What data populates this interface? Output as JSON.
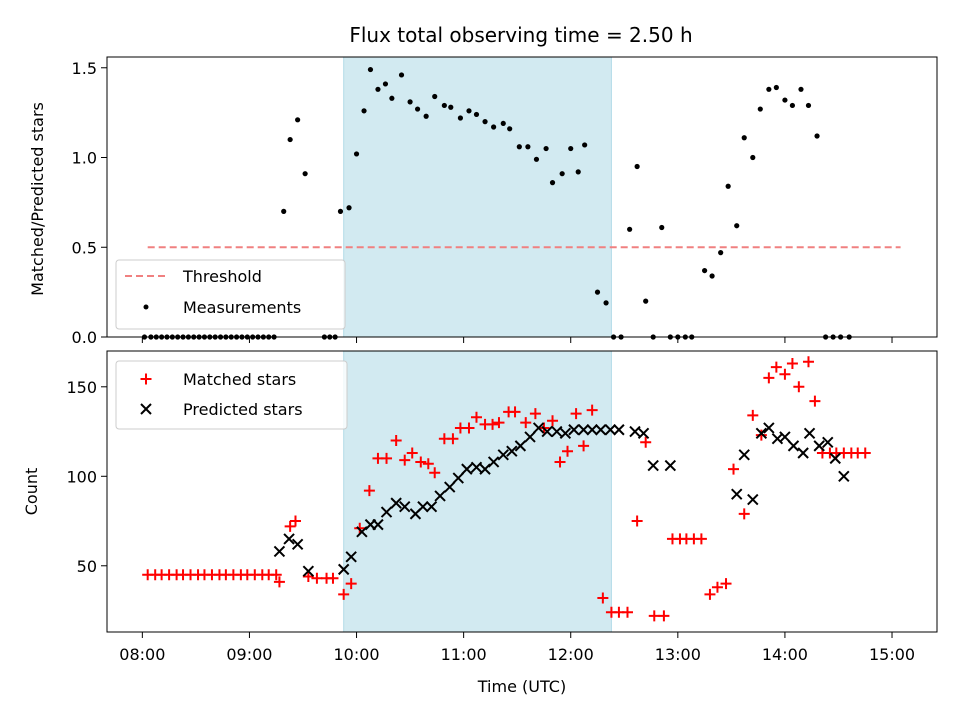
{
  "title": "Flux total observing time = 2.50 h",
  "colors": {
    "shade": "#add8e6",
    "threshold": "#f08080",
    "measurement": "#000000",
    "matched": "#ff0000",
    "predicted": "#000000"
  },
  "chart_data": [
    {
      "type": "scatter",
      "ylabel": "Matched/Predicted stars",
      "xlim": [
        7.67,
        15.42
      ],
      "ylim": [
        0,
        1.56
      ],
      "yticks": [
        0.0,
        0.5,
        1.0,
        1.5
      ],
      "shaded_interval": [
        9.88,
        12.38
      ],
      "threshold": {
        "name": "Threshold",
        "value": 0.5,
        "x": [
          8.05,
          15.08
        ]
      },
      "legend": [
        "Threshold",
        "Measurements"
      ],
      "legend_position": "lower left",
      "series": [
        {
          "name": "Measurements",
          "points": [
            [
              8.02,
              0
            ],
            [
              8.08,
              0
            ],
            [
              8.13,
              0
            ],
            [
              8.18,
              0
            ],
            [
              8.23,
              0
            ],
            [
              8.28,
              0
            ],
            [
              8.33,
              0
            ],
            [
              8.38,
              0
            ],
            [
              8.43,
              0
            ],
            [
              8.48,
              0
            ],
            [
              8.53,
              0
            ],
            [
              8.58,
              0
            ],
            [
              8.63,
              0
            ],
            [
              8.68,
              0
            ],
            [
              8.73,
              0
            ],
            [
              8.78,
              0
            ],
            [
              8.83,
              0
            ],
            [
              8.88,
              0
            ],
            [
              8.93,
              0
            ],
            [
              8.98,
              0
            ],
            [
              9.03,
              0
            ],
            [
              9.08,
              0
            ],
            [
              9.13,
              0
            ],
            [
              9.18,
              0
            ],
            [
              9.23,
              0
            ],
            [
              9.32,
              0.7
            ],
            [
              9.38,
              1.1
            ],
            [
              9.45,
              1.21
            ],
            [
              9.52,
              0.91
            ],
            [
              9.7,
              0
            ],
            [
              9.75,
              0
            ],
            [
              9.8,
              0
            ],
            [
              9.85,
              0.7
            ],
            [
              9.93,
              0.72
            ],
            [
              10.0,
              1.02
            ],
            [
              10.07,
              1.26
            ],
            [
              10.13,
              1.49
            ],
            [
              10.2,
              1.38
            ],
            [
              10.27,
              1.41
            ],
            [
              10.33,
              1.33
            ],
            [
              10.42,
              1.46
            ],
            [
              10.5,
              1.31
            ],
            [
              10.57,
              1.27
            ],
            [
              10.65,
              1.23
            ],
            [
              10.73,
              1.34
            ],
            [
              10.82,
              1.29
            ],
            [
              10.88,
              1.28
            ],
            [
              10.97,
              1.22
            ],
            [
              11.05,
              1.26
            ],
            [
              11.12,
              1.24
            ],
            [
              11.2,
              1.2
            ],
            [
              11.28,
              1.17
            ],
            [
              11.37,
              1.19
            ],
            [
              11.43,
              1.16
            ],
            [
              11.52,
              1.06
            ],
            [
              11.6,
              1.06
            ],
            [
              11.68,
              0.99
            ],
            [
              11.77,
              1.05
            ],
            [
              11.83,
              0.86
            ],
            [
              11.92,
              0.91
            ],
            [
              12.0,
              1.05
            ],
            [
              12.07,
              0.92
            ],
            [
              12.13,
              1.07
            ],
            [
              12.25,
              0.25
            ],
            [
              12.33,
              0.19
            ],
            [
              12.4,
              0
            ],
            [
              12.47,
              0
            ],
            [
              12.55,
              0.6
            ],
            [
              12.62,
              0.95
            ],
            [
              12.7,
              0.2
            ],
            [
              12.77,
              0
            ],
            [
              12.85,
              0.61
            ],
            [
              12.93,
              0
            ],
            [
              13.0,
              0
            ],
            [
              13.07,
              0
            ],
            [
              13.13,
              0
            ],
            [
              13.25,
              0.37
            ],
            [
              13.32,
              0.34
            ],
            [
              13.4,
              0.47
            ],
            [
              13.47,
              0.84
            ],
            [
              13.55,
              0.62
            ],
            [
              13.62,
              1.11
            ],
            [
              13.7,
              1.0
            ],
            [
              13.77,
              1.27
            ],
            [
              13.85,
              1.38
            ],
            [
              13.92,
              1.39
            ],
            [
              14.0,
              1.32
            ],
            [
              14.07,
              1.29
            ],
            [
              14.15,
              1.38
            ],
            [
              14.22,
              1.29
            ],
            [
              14.3,
              1.12
            ],
            [
              14.38,
              0
            ],
            [
              14.45,
              0
            ],
            [
              14.52,
              0
            ],
            [
              14.6,
              0
            ]
          ]
        }
      ]
    },
    {
      "type": "scatter",
      "xlabel": "Time (UTC)",
      "ylabel": "Count",
      "xlim": [
        7.67,
        15.42
      ],
      "ylim": [
        13,
        170
      ],
      "yticks": [
        50,
        100,
        150
      ],
      "xticks": [
        "08:00",
        "09:00",
        "10:00",
        "11:00",
        "12:00",
        "13:00",
        "14:00",
        "15:00"
      ],
      "shaded_interval": [
        9.88,
        12.38
      ],
      "legend": [
        "Matched stars",
        "Predicted stars"
      ],
      "legend_position": "upper left",
      "series": [
        {
          "name": "Matched stars",
          "marker": "+",
          "points": [
            [
              8.05,
              45
            ],
            [
              8.12,
              45
            ],
            [
              8.18,
              45
            ],
            [
              8.25,
              45
            ],
            [
              8.32,
              45
            ],
            [
              8.38,
              45
            ],
            [
              8.45,
              45
            ],
            [
              8.52,
              45
            ],
            [
              8.58,
              45
            ],
            [
              8.65,
              45
            ],
            [
              8.72,
              45
            ],
            [
              8.78,
              45
            ],
            [
              8.85,
              45
            ],
            [
              8.92,
              45
            ],
            [
              8.98,
              45
            ],
            [
              9.05,
              45
            ],
            [
              9.12,
              45
            ],
            [
              9.18,
              45
            ],
            [
              9.25,
              45
            ],
            [
              9.28,
              41
            ],
            [
              9.38,
              72
            ],
            [
              9.43,
              75
            ],
            [
              9.55,
              44
            ],
            [
              9.63,
              43
            ],
            [
              9.72,
              43
            ],
            [
              9.78,
              43
            ],
            [
              9.88,
              34
            ],
            [
              9.95,
              40
            ],
            [
              10.03,
              71
            ],
            [
              10.12,
              92
            ],
            [
              10.2,
              110
            ],
            [
              10.28,
              110
            ],
            [
              10.37,
              120
            ],
            [
              10.45,
              109
            ],
            [
              10.52,
              113
            ],
            [
              10.6,
              108
            ],
            [
              10.67,
              107
            ],
            [
              10.73,
              102
            ],
            [
              10.82,
              121
            ],
            [
              10.9,
              121
            ],
            [
              10.97,
              127
            ],
            [
              11.05,
              127
            ],
            [
              11.12,
              133
            ],
            [
              11.2,
              129
            ],
            [
              11.27,
              129
            ],
            [
              11.33,
              130
            ],
            [
              11.42,
              136
            ],
            [
              11.48,
              136
            ],
            [
              11.58,
              130
            ],
            [
              11.67,
              135
            ],
            [
              11.75,
              127
            ],
            [
              11.83,
              131
            ],
            [
              11.9,
              108
            ],
            [
              11.97,
              114
            ],
            [
              12.05,
              135
            ],
            [
              12.12,
              117
            ],
            [
              12.2,
              137
            ],
            [
              12.3,
              32
            ],
            [
              12.38,
              24
            ],
            [
              12.45,
              24
            ],
            [
              12.53,
              24
            ],
            [
              12.62,
              75
            ],
            [
              12.7,
              119
            ],
            [
              12.78,
              22
            ],
            [
              12.87,
              22
            ],
            [
              12.95,
              65
            ],
            [
              13.02,
              65
            ],
            [
              13.08,
              65
            ],
            [
              13.15,
              65
            ],
            [
              13.22,
              65
            ],
            [
              13.3,
              34
            ],
            [
              13.37,
              38
            ],
            [
              13.45,
              40
            ],
            [
              13.52,
              104
            ],
            [
              13.62,
              79
            ],
            [
              13.7,
              134
            ],
            [
              13.78,
              123
            ],
            [
              13.85,
              155
            ],
            [
              13.92,
              161
            ],
            [
              14.0,
              157
            ],
            [
              14.07,
              163
            ],
            [
              14.13,
              150
            ],
            [
              14.22,
              164
            ],
            [
              14.28,
              142
            ],
            [
              14.35,
              113
            ],
            [
              14.42,
              113
            ],
            [
              14.48,
              113
            ],
            [
              14.55,
              113
            ],
            [
              14.62,
              113
            ],
            [
              14.68,
              113
            ],
            [
              14.75,
              113
            ]
          ]
        },
        {
          "name": "Predicted stars",
          "marker": "x",
          "points": [
            [
              9.28,
              58
            ],
            [
              9.37,
              65
            ],
            [
              9.45,
              62
            ],
            [
              9.55,
              47
            ],
            [
              9.88,
              48
            ],
            [
              9.95,
              55
            ],
            [
              10.05,
              69
            ],
            [
              10.13,
              73
            ],
            [
              10.2,
              73
            ],
            [
              10.28,
              80
            ],
            [
              10.37,
              85
            ],
            [
              10.45,
              83
            ],
            [
              10.55,
              79
            ],
            [
              10.62,
              83
            ],
            [
              10.7,
              83
            ],
            [
              10.78,
              89
            ],
            [
              10.87,
              94
            ],
            [
              10.95,
              99
            ],
            [
              11.03,
              104
            ],
            [
              11.12,
              105
            ],
            [
              11.2,
              104
            ],
            [
              11.28,
              108
            ],
            [
              11.37,
              112
            ],
            [
              11.45,
              114
            ],
            [
              11.53,
              117
            ],
            [
              11.62,
              122
            ],
            [
              11.7,
              127
            ],
            [
              11.78,
              125
            ],
            [
              11.87,
              125
            ],
            [
              11.95,
              124
            ],
            [
              12.03,
              126
            ],
            [
              12.12,
              126
            ],
            [
              12.2,
              126
            ],
            [
              12.28,
              126
            ],
            [
              12.37,
              126
            ],
            [
              12.45,
              126
            ],
            [
              12.6,
              125
            ],
            [
              12.68,
              124
            ],
            [
              12.77,
              106
            ],
            [
              12.93,
              106
            ],
            [
              13.55,
              90
            ],
            [
              13.62,
              112
            ],
            [
              13.7,
              87
            ],
            [
              13.78,
              124
            ],
            [
              13.85,
              127
            ],
            [
              13.93,
              121
            ],
            [
              14.0,
              122
            ],
            [
              14.08,
              117
            ],
            [
              14.17,
              113
            ],
            [
              14.23,
              124
            ],
            [
              14.32,
              117
            ],
            [
              14.4,
              119
            ],
            [
              14.47,
              110
            ],
            [
              14.55,
              100
            ]
          ]
        }
      ]
    }
  ]
}
